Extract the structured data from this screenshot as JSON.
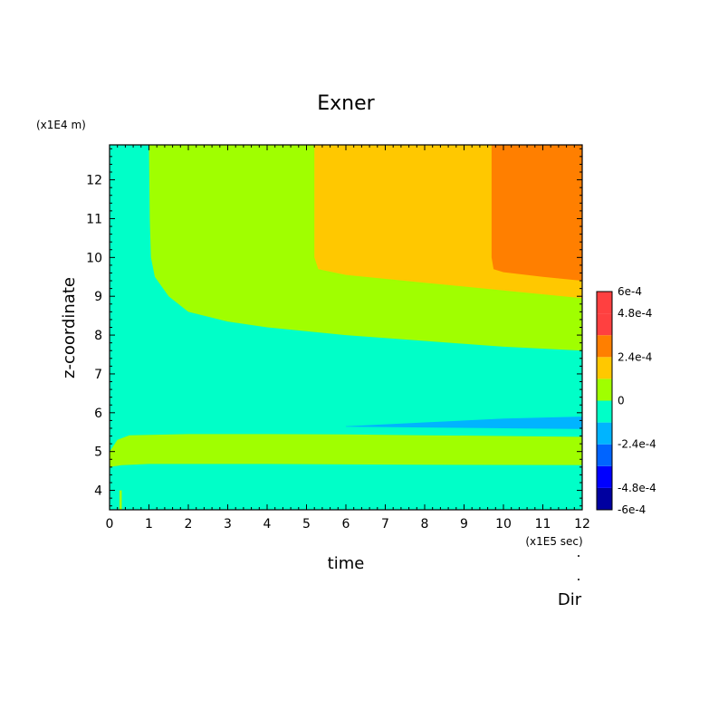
{
  "chart_data": {
    "type": "heatmap",
    "title": "Exner",
    "xlabel": "time",
    "ylabel": "z-coordinate",
    "x_unit_label": "(x1E5 sec)",
    "y_unit_label": "(x1E4 m)",
    "xlim": [
      0,
      12
    ],
    "ylim": [
      3.5,
      12.9
    ],
    "x_ticks": [
      "0",
      "1",
      "2",
      "3",
      "4",
      "5",
      "6",
      "7",
      "8",
      "9",
      "10",
      "11",
      "12"
    ],
    "y_ticks": [
      "4",
      "5",
      "6",
      "7",
      "8",
      "9",
      "10",
      "11",
      "12"
    ],
    "footer_label": "Dir",
    "colorbar": {
      "levels": [
        -0.0006,
        -0.00048,
        -0.00036,
        -0.00024,
        -0.00012,
        0,
        0.00012,
        0.00024,
        0.00036,
        0.00048,
        0.0006
      ],
      "colors": [
        "#0000a0",
        "#0000ff",
        "#0064ff",
        "#00b4ff",
        "#00ffc8",
        "#a0ff00",
        "#ffc800",
        "#ff7f00",
        "#ff4040",
        "#ff4040"
      ],
      "tick_labels": [
        "6e-4",
        "4.8e-4",
        "2.4e-4",
        "0",
        "-2.4e-4",
        "-4.8e-4",
        "-6e-4"
      ],
      "tick_values": [
        0.0006,
        0.00048,
        0.00024,
        0,
        -0.00024,
        -0.00048,
        -0.0006
      ]
    },
    "regions": [
      {
        "name": "positive-band-upper",
        "color": "#a0ff00",
        "points": [
          [
            1.0,
            12.9
          ],
          [
            12,
            12.9
          ],
          [
            12,
            7.6
          ],
          [
            10,
            7.7
          ],
          [
            8,
            7.85
          ],
          [
            6,
            8.0
          ],
          [
            4,
            8.2
          ],
          [
            3,
            8.35
          ],
          [
            2,
            8.6
          ],
          [
            1.5,
            9.0
          ],
          [
            1.15,
            9.5
          ],
          [
            1.05,
            10.0
          ],
          [
            1.02,
            11
          ],
          [
            1.0,
            12.9
          ]
        ]
      },
      {
        "name": "level-1-band",
        "color": "#ffc800",
        "points": [
          [
            5.2,
            12.9
          ],
          [
            12,
            12.9
          ],
          [
            12,
            8.95
          ],
          [
            10,
            9.15
          ],
          [
            8,
            9.35
          ],
          [
            6,
            9.55
          ],
          [
            5.3,
            9.7
          ],
          [
            5.2,
            10.0
          ],
          [
            5.2,
            12.9
          ]
        ]
      },
      {
        "name": "level-2-band",
        "color": "#ff7f00",
        "points": [
          [
            9.7,
            12.9
          ],
          [
            12,
            12.9
          ],
          [
            12,
            9.4
          ],
          [
            11,
            9.5
          ],
          [
            10,
            9.62
          ],
          [
            9.75,
            9.7
          ],
          [
            9.7,
            10.0
          ],
          [
            9.7,
            12.9
          ]
        ]
      },
      {
        "name": "negative-tongue",
        "color": "#00b4ff",
        "points": [
          [
            6.0,
            5.65
          ],
          [
            8,
            5.75
          ],
          [
            10,
            5.85
          ],
          [
            12,
            5.9
          ],
          [
            12,
            5.58
          ],
          [
            10,
            5.6
          ],
          [
            8,
            5.62
          ],
          [
            6,
            5.64
          ]
        ]
      },
      {
        "name": "positive-band-lower",
        "color": "#a0ff00",
        "points": [
          [
            0,
            5.0
          ],
          [
            0.2,
            5.3
          ],
          [
            0.5,
            5.42
          ],
          [
            2,
            5.45
          ],
          [
            4,
            5.45
          ],
          [
            6,
            5.44
          ],
          [
            8,
            5.42
          ],
          [
            10,
            5.4
          ],
          [
            12,
            5.38
          ],
          [
            12,
            4.65
          ],
          [
            8,
            4.66
          ],
          [
            4,
            4.68
          ],
          [
            1,
            4.68
          ],
          [
            0.3,
            4.65
          ],
          [
            0,
            4.6
          ]
        ]
      },
      {
        "name": "positive-sliver",
        "color": "#a0ff00",
        "points": [
          [
            0.25,
            4.0
          ],
          [
            0.31,
            4.0
          ],
          [
            0.31,
            3.5
          ],
          [
            0.25,
            3.5
          ]
        ]
      }
    ],
    "background_color": "#00ffc8"
  }
}
